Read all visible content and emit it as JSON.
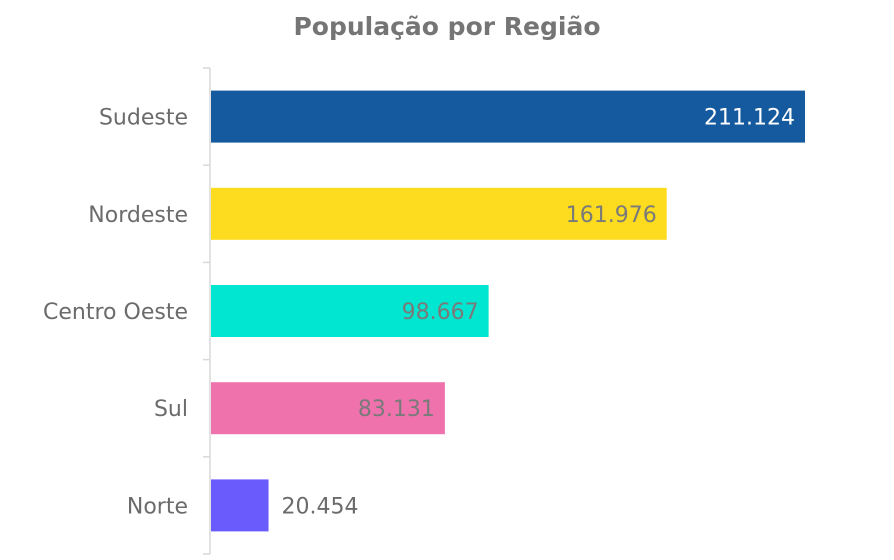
{
  "chart_data": {
    "type": "bar",
    "orientation": "horizontal",
    "title": "População por Região",
    "xlabel": "",
    "ylabel": "",
    "categories": [
      "Sudeste",
      "Nordeste",
      "Centro Oeste",
      "Sul",
      "Norte"
    ],
    "values": [
      211124,
      161976,
      98667,
      83131,
      20454
    ],
    "value_labels": [
      "211.124",
      "161.976",
      "98.667",
      "83.131",
      "20.454"
    ],
    "colors": [
      "#155a9e",
      "#fddb1f",
      "#00e6d1",
      "#ef72ad",
      "#6a5cfc"
    ],
    "label_colors": [
      "#ffffff",
      "#7a7a7a",
      "#7a7a7a",
      "#7a7a7a",
      "#6b6b6b"
    ],
    "label_inside": [
      true,
      true,
      true,
      true,
      false
    ],
    "xlim": [
      0,
      211124
    ],
    "grid": false,
    "legend": "none"
  }
}
